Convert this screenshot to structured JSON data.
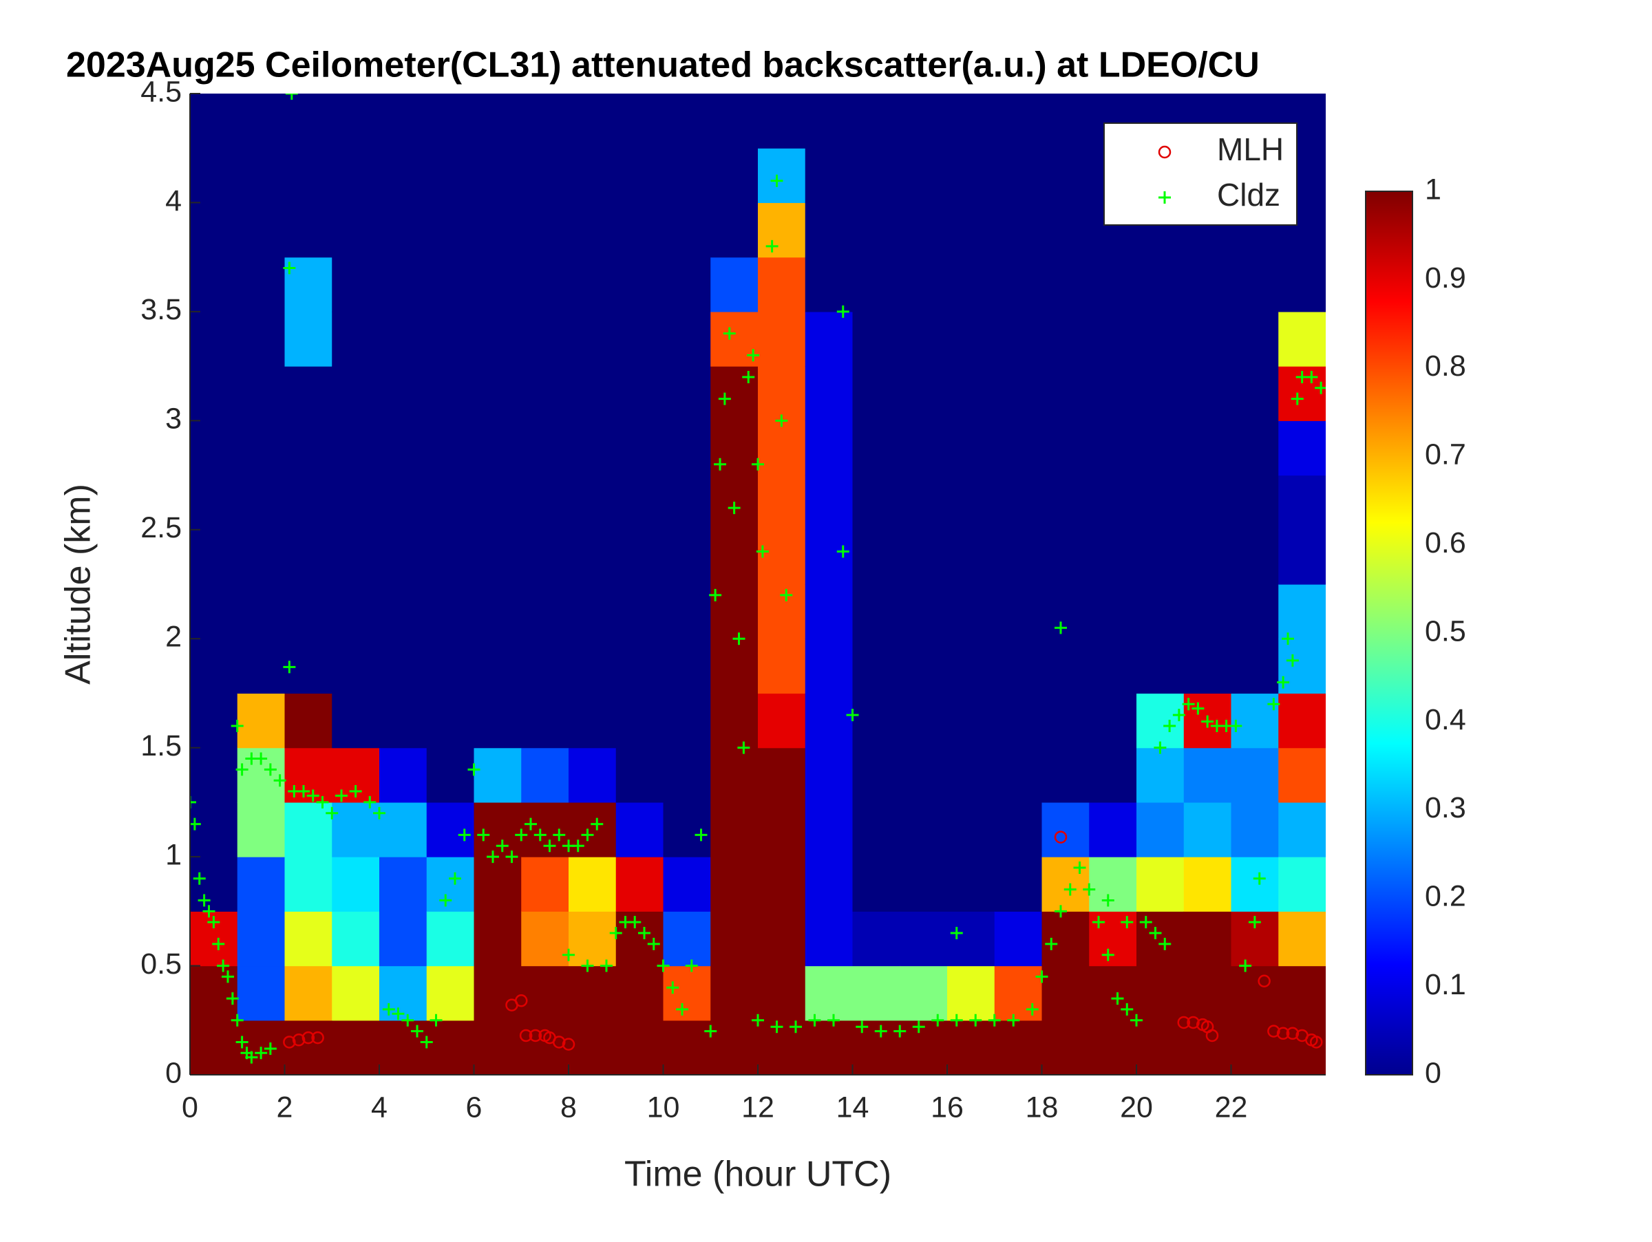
{
  "chart_data": {
    "type": "heatmap",
    "title": "2023Aug25 Ceilometer(CL31) attenuated backscatter(a.u.) at LDEO/CU",
    "xlabel": "Time (hour UTC)",
    "ylabel": "Altitude (km)",
    "xlim": [
      0,
      24
    ],
    "xticks": [
      0,
      2,
      4,
      6,
      8,
      10,
      12,
      14,
      16,
      18,
      20,
      22
    ],
    "ylim": [
      0,
      4.5
    ],
    "yticks": [
      0,
      0.5,
      1,
      1.5,
      2,
      2.5,
      3,
      3.5,
      4,
      4.5
    ],
    "clim": [
      0,
      1
    ],
    "cticks": [
      0,
      0.1,
      0.2,
      0.3,
      0.4,
      0.5,
      0.6,
      0.7,
      0.8,
      0.9,
      1
    ],
    "colormap": "jet",
    "legend": "upper right",
    "z": [
      [
        1,
        1,
        0.9,
        0,
        0,
        0,
        0,
        0,
        0,
        0,
        0,
        0,
        0,
        0,
        0,
        0,
        0,
        0
      ],
      [
        1,
        0.2,
        0.2,
        0.2,
        0.5,
        0.5,
        0.7,
        0,
        0,
        0,
        0,
        0,
        0,
        0,
        0,
        0,
        0,
        0
      ],
      [
        1,
        0.7,
        0.6,
        0.4,
        0.4,
        0.9,
        1,
        0,
        0,
        0,
        0,
        0,
        0,
        0.3,
        0.3,
        0,
        0,
        0
      ],
      [
        1,
        0.6,
        0.4,
        0.35,
        0.3,
        0.9,
        0,
        0,
        0,
        0,
        0,
        0,
        0,
        0,
        0,
        0,
        0,
        0
      ],
      [
        1,
        0.3,
        0.2,
        0.2,
        0.3,
        0.1,
        0,
        0,
        0,
        0,
        0,
        0,
        0,
        0,
        0,
        0,
        0,
        0
      ],
      [
        1,
        0.6,
        0.4,
        0.3,
        0.1,
        0,
        0,
        0,
        0,
        0,
        0,
        0,
        0,
        0,
        0,
        0,
        0,
        0
      ],
      [
        1,
        1,
        1,
        1,
        1,
        0.3,
        0,
        0,
        0,
        0,
        0,
        0,
        0,
        0,
        0,
        0,
        0,
        0
      ],
      [
        1,
        1,
        0.75,
        0.8,
        1,
        0.2,
        0,
        0,
        0,
        0,
        0,
        0,
        0,
        0,
        0,
        0,
        0,
        0
      ],
      [
        1,
        1,
        0.7,
        0.65,
        1,
        0.1,
        0,
        0,
        0,
        0,
        0,
        0,
        0,
        0,
        0,
        0,
        0,
        0
      ],
      [
        1,
        1,
        1,
        0.9,
        0.1,
        0,
        0,
        0,
        0,
        0,
        0,
        0,
        0,
        0,
        0,
        0,
        0,
        0
      ],
      [
        1,
        0.8,
        0.2,
        0.1,
        0,
        0,
        0,
        0,
        0,
        0,
        0,
        0,
        0,
        0,
        0,
        0,
        0,
        0
      ],
      [
        1,
        1,
        1,
        1,
        1,
        1,
        1,
        1,
        1,
        1,
        1,
        1,
        1,
        0.8,
        0.2,
        0,
        0,
        0
      ],
      [
        1,
        1,
        1,
        1,
        1,
        1,
        0.9,
        0.8,
        0.8,
        0.8,
        0.8,
        0.8,
        0.8,
        0.8,
        0.8,
        0.7,
        0.3,
        0
      ],
      [
        1,
        0.5,
        0.1,
        0.1,
        0.1,
        0.1,
        0.1,
        0.1,
        0.1,
        0.1,
        0.1,
        0.1,
        0.1,
        0.1,
        0,
        0,
        0,
        0
      ],
      [
        1,
        0.5,
        0.05,
        0,
        0,
        0,
        0,
        0,
        0,
        0,
        0,
        0,
        0,
        0,
        0,
        0,
        0,
        0
      ],
      [
        1,
        0.5,
        0.05,
        0,
        0,
        0,
        0,
        0,
        0,
        0,
        0,
        0,
        0,
        0,
        0,
        0,
        0,
        0
      ],
      [
        1,
        0.6,
        0.05,
        0,
        0,
        0,
        0,
        0,
        0,
        0,
        0,
        0,
        0,
        0,
        0,
        0,
        0,
        0
      ],
      [
        1,
        0.8,
        0.1,
        0,
        0,
        0,
        0,
        0,
        0,
        0,
        0,
        0,
        0,
        0,
        0,
        0,
        0,
        0
      ],
      [
        1,
        1,
        1,
        0.7,
        0.2,
        0,
        0,
        0,
        0,
        0,
        0,
        0,
        0,
        0,
        0,
        0,
        0,
        0
      ],
      [
        1,
        1,
        0.9,
        0.5,
        0.1,
        0,
        0,
        0,
        0,
        0,
        0,
        0,
        0,
        0,
        0,
        0,
        0,
        0
      ],
      [
        1,
        1,
        1,
        0.6,
        0.25,
        0.3,
        0.4,
        0,
        0,
        0,
        0,
        0,
        0,
        0,
        0,
        0,
        0,
        0
      ],
      [
        1,
        1,
        1,
        0.65,
        0.3,
        0.25,
        0.9,
        0,
        0,
        0,
        0,
        0,
        0,
        0,
        0,
        0,
        0,
        0
      ],
      [
        1,
        1,
        0.95,
        0.35,
        0.25,
        0.25,
        0.3,
        0,
        0,
        0,
        0,
        0,
        0,
        0,
        0,
        0,
        0,
        0
      ],
      [
        1,
        1,
        0.7,
        0.4,
        0.3,
        0.8,
        0.9,
        0.3,
        0.3,
        0.05,
        0.05,
        0.1,
        0.9,
        0.6,
        0,
        0,
        0,
        0
      ]
    ],
    "series": [
      {
        "name": "MLH",
        "color": "#e00000",
        "marker": "o",
        "x": [
          2.1,
          2.3,
          2.5,
          2.7,
          6.8,
          7.0,
          7.1,
          7.3,
          7.5,
          7.6,
          7.8,
          8.0,
          18.4,
          21.0,
          21.2,
          21.4,
          21.5,
          21.6,
          22.7,
          22.9,
          23.1,
          23.3,
          23.5,
          23.7,
          23.8
        ],
        "y": [
          0.15,
          0.16,
          0.17,
          0.17,
          0.32,
          0.34,
          0.18,
          0.18,
          0.18,
          0.17,
          0.15,
          0.14,
          1.09,
          0.24,
          0.24,
          0.23,
          0.22,
          0.18,
          0.43,
          0.2,
          0.19,
          0.19,
          0.18,
          0.16,
          0.15
        ]
      },
      {
        "name": "Cldz",
        "color": "#00ff00",
        "marker": "+",
        "x": [
          0,
          0.1,
          0.2,
          0.3,
          0.4,
          0.5,
          0.6,
          0.7,
          0.8,
          0.9,
          1.0,
          1.1,
          1.2,
          1.3,
          1.5,
          1.7,
          1.0,
          1.1,
          1.3,
          1.5,
          1.7,
          1.9,
          2.1,
          2.1,
          2.15,
          2.2,
          2.4,
          2.6,
          2.8,
          3.0,
          3.2,
          3.5,
          3.8,
          4.0,
          4.2,
          4.4,
          4.6,
          4.8,
          5.0,
          5.2,
          5.4,
          5.6,
          5.8,
          6.0,
          6.2,
          6.4,
          6.6,
          6.8,
          7.0,
          7.2,
          7.4,
          7.6,
          7.8,
          8.0,
          8.2,
          8.4,
          8.6,
          8.0,
          8.4,
          8.8,
          9.0,
          9.2,
          9.4,
          9.6,
          9.8,
          10.0,
          10.2,
          10.4,
          10.6,
          10.8,
          11.0,
          11.1,
          11.2,
          11.3,
          11.4,
          11.5,
          11.6,
          11.7,
          11.8,
          11.9,
          12.0,
          12.1,
          12.3,
          12.4,
          12.5,
          12.6,
          12.0,
          12.4,
          12.8,
          13.2,
          13.6,
          13.8,
          13.8,
          14.0,
          14.2,
          14.6,
          15.0,
          15.4,
          15.8,
          16.2,
          16.2,
          16.6,
          17.0,
          17.4,
          17.8,
          18.0,
          18.2,
          18.4,
          18.4,
          18.6,
          18.8,
          19.0,
          19.2,
          19.4,
          19.6,
          19.8,
          20.0,
          19.4,
          19.8,
          20.2,
          20.4,
          20.6,
          20.5,
          20.7,
          20.9,
          21.1,
          21.3,
          21.5,
          21.7,
          21.9,
          22.1,
          22.3,
          22.5,
          22.6,
          22.9,
          23.1,
          23.2,
          23.3,
          23.4,
          23.5,
          23.7,
          23.9
        ],
        "y": [
          1.25,
          1.15,
          0.9,
          0.8,
          0.75,
          0.7,
          0.6,
          0.5,
          0.45,
          0.35,
          0.25,
          0.15,
          0.1,
          0.08,
          0.1,
          0.12,
          1.6,
          1.4,
          1.45,
          1.45,
          1.4,
          1.35,
          1.87,
          3.7,
          4.5,
          1.3,
          1.3,
          1.28,
          1.25,
          1.2,
          1.28,
          1.3,
          1.25,
          1.2,
          0.3,
          0.28,
          0.25,
          0.2,
          0.15,
          0.25,
          0.8,
          0.9,
          1.1,
          1.4,
          1.1,
          1.0,
          1.05,
          1.0,
          1.1,
          1.15,
          1.1,
          1.05,
          1.1,
          1.05,
          1.05,
          1.1,
          1.15,
          0.55,
          0.5,
          0.5,
          0.65,
          0.7,
          0.7,
          0.65,
          0.6,
          0.5,
          0.4,
          0.3,
          0.5,
          1.1,
          0.2,
          2.2,
          2.8,
          3.1,
          3.4,
          2.6,
          2.0,
          1.5,
          3.2,
          3.3,
          2.8,
          2.4,
          3.8,
          4.1,
          3.0,
          2.2,
          0.25,
          0.22,
          0.22,
          0.25,
          0.25,
          3.5,
          2.4,
          1.65,
          0.22,
          0.2,
          0.2,
          0.22,
          0.25,
          0.25,
          0.65,
          0.25,
          0.25,
          0.25,
          0.3,
          0.45,
          0.6,
          0.75,
          2.05,
          0.85,
          0.95,
          0.85,
          0.7,
          0.55,
          0.35,
          0.3,
          0.25,
          0.8,
          0.7,
          0.7,
          0.65,
          0.6,
          1.5,
          1.6,
          1.65,
          1.7,
          1.68,
          1.62,
          1.6,
          1.6,
          1.6,
          0.5,
          0.7,
          0.9,
          1.7,
          1.8,
          2.0,
          1.9,
          3.1,
          3.2,
          3.2,
          3.15
        ]
      }
    ]
  }
}
